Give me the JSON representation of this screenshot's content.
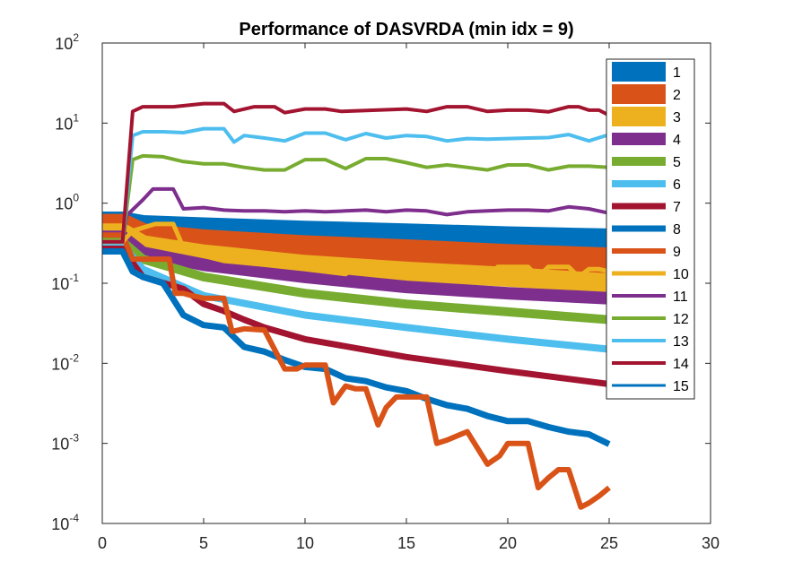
{
  "chart_data": {
    "type": "line",
    "title": "Performance of DASVRDA (min idx = 9)",
    "xlabel": "",
    "ylabel": "",
    "xlim": [
      0,
      30
    ],
    "ylim": [
      0.0001,
      100
    ],
    "yscale": "log",
    "x_ticks": [
      "0",
      "5",
      "10",
      "15",
      "20",
      "25",
      "30"
    ],
    "y_ticks": [
      {
        "base": "10",
        "exp": "-4",
        "value": 0.0001
      },
      {
        "base": "10",
        "exp": "-3",
        "value": 0.001
      },
      {
        "base": "10",
        "exp": "-2",
        "value": 0.01
      },
      {
        "base": "10",
        "exp": "-1",
        "value": 0.1
      },
      {
        "base": "10",
        "exp": "0",
        "value": 1
      },
      {
        "base": "10",
        "exp": "1",
        "value": 10
      },
      {
        "base": "10",
        "exp": "2",
        "value": 100
      }
    ],
    "grid": false,
    "legend_position": "top-right",
    "series": [
      {
        "name": "1",
        "color": "#0072BD",
        "width": 32,
        "x": [
          0,
          1,
          2,
          5,
          10,
          15,
          20,
          25
        ],
        "y": [
          0.52,
          0.52,
          0.47,
          0.44,
          0.4,
          0.37,
          0.34,
          0.32
        ]
      },
      {
        "name": "2",
        "color": "#D95319",
        "width": 30,
        "x": [
          0,
          1,
          2,
          5,
          10,
          15,
          20,
          25
        ],
        "y": [
          0.5,
          0.5,
          0.38,
          0.32,
          0.27,
          0.24,
          0.21,
          0.19
        ]
      },
      {
        "name": "3",
        "color": "#EDB120",
        "width": 22,
        "x": [
          0,
          1,
          2,
          5,
          10,
          15,
          20,
          25
        ],
        "y": [
          0.42,
          0.42,
          0.3,
          0.23,
          0.17,
          0.14,
          0.12,
          0.1
        ]
      },
      {
        "name": "4",
        "color": "#7E2F8E",
        "width": 14,
        "x": [
          0,
          1,
          2,
          5,
          10,
          15,
          20,
          25
        ],
        "y": [
          0.38,
          0.38,
          0.24,
          0.17,
          0.12,
          0.09,
          0.075,
          0.065
        ]
      },
      {
        "name": "5",
        "color": "#77AC30",
        "width": 10,
        "x": [
          0,
          1,
          2,
          5,
          10,
          15,
          20,
          25
        ],
        "y": [
          0.33,
          0.33,
          0.2,
          0.12,
          0.075,
          0.055,
          0.044,
          0.035
        ]
      },
      {
        "name": "6",
        "color": "#4DBEEE",
        "width": 8,
        "x": [
          0,
          1,
          2,
          5,
          10,
          15,
          20,
          25
        ],
        "y": [
          0.3,
          0.3,
          0.15,
          0.07,
          0.04,
          0.028,
          0.02,
          0.015
        ]
      },
      {
        "name": "7",
        "color": "#A2142F",
        "width": 7,
        "x": [
          0,
          1,
          2,
          4,
          5,
          6,
          7,
          8,
          10,
          15,
          20,
          25
        ],
        "y": [
          0.27,
          0.27,
          0.12,
          0.085,
          0.055,
          0.045,
          0.035,
          0.028,
          0.02,
          0.012,
          0.008,
          0.0055
        ]
      },
      {
        "name": "8",
        "color": "#0072BD",
        "width": 7,
        "x": [
          0,
          1,
          1.5,
          2,
          3,
          4,
          5,
          6,
          7,
          8,
          9,
          10,
          11,
          12,
          13,
          14,
          15,
          16,
          17,
          18,
          19,
          20,
          21,
          22,
          23,
          24,
          25
        ],
        "y": [
          0.25,
          0.25,
          0.14,
          0.12,
          0.1,
          0.04,
          0.03,
          0.028,
          0.016,
          0.014,
          0.011,
          0.009,
          0.0085,
          0.0065,
          0.006,
          0.005,
          0.0045,
          0.0036,
          0.003,
          0.0027,
          0.0022,
          0.0019,
          0.0019,
          0.0016,
          0.0014,
          0.0013,
          0.00098
        ]
      },
      {
        "name": "9",
        "color": "#D95319",
        "width": 6,
        "x": [
          0,
          1,
          1.5,
          3.3,
          3.6,
          4,
          4.4,
          5,
          6,
          6.4,
          7,
          8,
          9,
          9.6,
          10,
          11,
          11.4,
          12,
          12.5,
          13,
          13.6,
          14,
          14.5,
          15,
          16,
          16.5,
          17,
          18,
          19,
          19.6,
          20,
          21,
          21.5,
          22,
          22.5,
          23,
          23.6,
          24,
          24.5,
          25
        ],
        "y": [
          0.4,
          0.4,
          0.2,
          0.2,
          0.075,
          0.075,
          0.07,
          0.065,
          0.065,
          0.025,
          0.027,
          0.026,
          0.0085,
          0.0085,
          0.0095,
          0.0095,
          0.0032,
          0.0052,
          0.0048,
          0.0048,
          0.0017,
          0.0028,
          0.0038,
          0.0038,
          0.0038,
          0.001,
          0.0011,
          0.0014,
          0.00055,
          0.0007,
          0.001,
          0.001,
          0.00028,
          0.00037,
          0.00047,
          0.00047,
          0.00016,
          0.00018,
          0.00022,
          0.00028
        ]
      },
      {
        "name": "10",
        "color": "#EDB120",
        "width": 5,
        "x": [
          0,
          1,
          1.5,
          2.6,
          3.5,
          4,
          5,
          6,
          8,
          10,
          12,
          12.5,
          13,
          13.5,
          15,
          17,
          19,
          19.5,
          20,
          21,
          21.5,
          22,
          23,
          23.5,
          24,
          24.5,
          25
        ],
        "y": [
          0.33,
          0.33,
          0.45,
          0.55,
          0.55,
          0.28,
          0.22,
          0.19,
          0.17,
          0.15,
          0.13,
          0.16,
          0.16,
          0.13,
          0.12,
          0.11,
          0.1,
          0.16,
          0.16,
          0.16,
          0.12,
          0.16,
          0.16,
          0.12,
          0.15,
          0.15,
          0.14
        ]
      },
      {
        "name": "11",
        "color": "#7E2F8E",
        "width": 4,
        "x": [
          0,
          1,
          1.2,
          2,
          2.5,
          3.5,
          4,
          5,
          6,
          7,
          8,
          9,
          10,
          11,
          12,
          13,
          14,
          15,
          16,
          17,
          18,
          19,
          20,
          21,
          22,
          23,
          24,
          25
        ],
        "y": [
          0.33,
          0.33,
          0.7,
          1.1,
          1.5,
          1.5,
          0.85,
          0.88,
          0.82,
          0.8,
          0.8,
          0.78,
          0.8,
          0.78,
          0.8,
          0.82,
          0.78,
          0.82,
          0.8,
          0.72,
          0.78,
          0.8,
          0.82,
          0.82,
          0.8,
          0.9,
          0.85,
          0.75
        ]
      },
      {
        "name": "12",
        "color": "#77AC30",
        "width": 4,
        "x": [
          0,
          1,
          1.5,
          2,
          3,
          4,
          5,
          6,
          7,
          8,
          9,
          10,
          11,
          12,
          13,
          14,
          15,
          16,
          17,
          18,
          19,
          20,
          21,
          22,
          23,
          24,
          25
        ],
        "y": [
          0.33,
          0.33,
          3.5,
          3.9,
          3.8,
          3.3,
          3.1,
          3.1,
          2.8,
          2.6,
          2.6,
          3.5,
          3.5,
          2.7,
          3.6,
          3.6,
          3.2,
          2.8,
          3.0,
          2.8,
          2.6,
          3.0,
          3.0,
          2.6,
          2.9,
          2.9,
          2.8
        ]
      },
      {
        "name": "13",
        "color": "#4DBEEE",
        "width": 4,
        "x": [
          0,
          1,
          1.5,
          2,
          3,
          4,
          5,
          6,
          6.5,
          7,
          8,
          9,
          10,
          11,
          12,
          13,
          14,
          15,
          16,
          17,
          18,
          19,
          20,
          21,
          22,
          23,
          24,
          25
        ],
        "y": [
          0.33,
          0.33,
          7.0,
          7.8,
          7.8,
          7.6,
          8.5,
          8.5,
          5.8,
          7.0,
          6.5,
          6.0,
          7.5,
          7.5,
          6.2,
          7.4,
          6.5,
          7.0,
          6.8,
          6.0,
          6.4,
          6.3,
          6.4,
          6.5,
          6.6,
          7.2,
          6.0,
          7.2
        ]
      },
      {
        "name": "14",
        "color": "#A2142F",
        "width": 4,
        "x": [
          0,
          1,
          1.5,
          2,
          3.5,
          5,
          6,
          6.5,
          7.5,
          8.5,
          9,
          10,
          11,
          11.8,
          15,
          16,
          17,
          18,
          19,
          20,
          21,
          22,
          23,
          23.5,
          24,
          24.5,
          25
        ],
        "y": [
          0.33,
          0.33,
          14,
          16,
          16,
          17.5,
          17.5,
          14,
          16,
          16,
          13.5,
          15,
          15,
          14,
          15,
          14,
          16,
          16,
          14,
          14.5,
          14.5,
          13.8,
          16,
          16,
          14.5,
          14.5,
          12.5
        ]
      },
      {
        "name": "15",
        "color": "#0072BD",
        "width": 3,
        "x": [],
        "y": []
      }
    ]
  }
}
